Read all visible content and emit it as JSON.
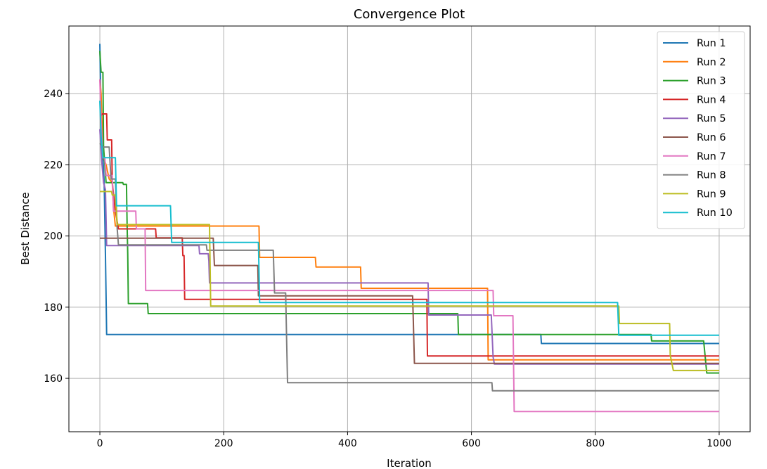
{
  "chart_data": {
    "type": "line",
    "title": "Convergence Plot",
    "xlabel": "Iteration",
    "ylabel": "Best Distance",
    "xlim": [
      -50,
      1050
    ],
    "ylim": [
      145,
      259
    ],
    "xticks": [
      0,
      200,
      400,
      600,
      800,
      1000
    ],
    "yticks": [
      160,
      180,
      200,
      220,
      240
    ],
    "grid": true,
    "legend_position": "top-right",
    "series": [
      {
        "name": "Run 1",
        "color": "#1f77b4",
        "points": [
          [
            0,
            254
          ],
          [
            2,
            234
          ],
          [
            5,
            222
          ],
          [
            7,
            215
          ],
          [
            9,
            194.5
          ],
          [
            11,
            172.3
          ],
          [
            712,
            172.3
          ],
          [
            713,
            169.8
          ],
          [
            1000,
            169.8
          ]
        ]
      },
      {
        "name": "Run 2",
        "color": "#ff7f0e",
        "points": [
          [
            0,
            244
          ],
          [
            2,
            240
          ],
          [
            4,
            228
          ],
          [
            6,
            222
          ],
          [
            10,
            220
          ],
          [
            15,
            216
          ],
          [
            20,
            215
          ],
          [
            22,
            208
          ],
          [
            25,
            202.8
          ],
          [
            257,
            202.8
          ],
          [
            258,
            194
          ],
          [
            348,
            194
          ],
          [
            349,
            191.3
          ],
          [
            421,
            191.3
          ],
          [
            422,
            185.3
          ],
          [
            626,
            185.3
          ],
          [
            627,
            165.2
          ],
          [
            1000,
            165.2
          ]
        ]
      },
      {
        "name": "Run 3",
        "color": "#2ca02c",
        "points": [
          [
            0,
            252
          ],
          [
            2,
            246
          ],
          [
            5,
            246
          ],
          [
            6,
            225
          ],
          [
            10,
            215
          ],
          [
            37,
            215
          ],
          [
            38,
            214.5
          ],
          [
            43,
            214.5
          ],
          [
            44,
            203
          ],
          [
            45,
            195
          ],
          [
            46,
            181
          ],
          [
            77,
            181
          ],
          [
            78,
            178.2
          ],
          [
            578,
            178.2
          ],
          [
            579,
            172.3
          ],
          [
            890,
            172.3
          ],
          [
            891,
            170.5
          ],
          [
            975,
            170.5
          ],
          [
            978,
            165
          ],
          [
            980,
            161.5
          ],
          [
            1000,
            161.5
          ]
        ]
      },
      {
        "name": "Run 4",
        "color": "#d62728",
        "points": [
          [
            0,
            234
          ],
          [
            3,
            234
          ],
          [
            4,
            234.3
          ],
          [
            11,
            234.3
          ],
          [
            12,
            227
          ],
          [
            19,
            227
          ],
          [
            20,
            215
          ],
          [
            25,
            207
          ],
          [
            30,
            202
          ],
          [
            90,
            202
          ],
          [
            91,
            199.5
          ],
          [
            133,
            199.5
          ],
          [
            134,
            194.5
          ],
          [
            136,
            194.5
          ],
          [
            137,
            182.2
          ],
          [
            528,
            182.2
          ],
          [
            529,
            166.3
          ],
          [
            1000,
            166.3
          ]
        ]
      },
      {
        "name": "Run 5",
        "color": "#9467bd",
        "points": [
          [
            0,
            230
          ],
          [
            3,
            221
          ],
          [
            6,
            215
          ],
          [
            9,
            213
          ],
          [
            11,
            197.3
          ],
          [
            160,
            197.3
          ],
          [
            161,
            195
          ],
          [
            175,
            195
          ],
          [
            176,
            193
          ],
          [
            177,
            186.8
          ],
          [
            530,
            186.8
          ],
          [
            531,
            177.8
          ],
          [
            632,
            177.8
          ],
          [
            635,
            166
          ],
          [
            637,
            164
          ],
          [
            1000,
            164
          ]
        ]
      },
      {
        "name": "Run 6",
        "color": "#8c564b",
        "points": [
          [
            0,
            199.4
          ],
          [
            183,
            199.4
          ],
          [
            185,
            191.7
          ],
          [
            255,
            191.7
          ],
          [
            256,
            183.2
          ],
          [
            505,
            183.2
          ],
          [
            506,
            177
          ],
          [
            508,
            164.2
          ],
          [
            1000,
            164.2
          ]
        ]
      },
      {
        "name": "Run 7",
        "color": "#e377c2",
        "points": [
          [
            0,
            244
          ],
          [
            2,
            232
          ],
          [
            5,
            222
          ],
          [
            8,
            222
          ],
          [
            10,
            217
          ],
          [
            20,
            217
          ],
          [
            22,
            207
          ],
          [
            58,
            207
          ],
          [
            59,
            202
          ],
          [
            73,
            202
          ],
          [
            74,
            184.7
          ],
          [
            635,
            184.7
          ],
          [
            636,
            177.6
          ],
          [
            667,
            177.6
          ],
          [
            669,
            150.7
          ],
          [
            1000,
            150.7
          ]
        ]
      },
      {
        "name": "Run 8",
        "color": "#7f7f7f",
        "points": [
          [
            0,
            226
          ],
          [
            5,
            225
          ],
          [
            15,
            225
          ],
          [
            18,
            216
          ],
          [
            25,
            216
          ],
          [
            28,
            202
          ],
          [
            30,
            197.5
          ],
          [
            172,
            197.5
          ],
          [
            173,
            196
          ],
          [
            280,
            196
          ],
          [
            282,
            184
          ],
          [
            300,
            184
          ],
          [
            303,
            158.8
          ],
          [
            633,
            158.8
          ],
          [
            634,
            156.5
          ],
          [
            1000,
            156.5
          ]
        ]
      },
      {
        "name": "Run 9",
        "color": "#bcbd22",
        "points": [
          [
            0,
            212.5
          ],
          [
            19,
            212.5
          ],
          [
            20,
            211.5
          ],
          [
            25,
            211.5
          ],
          [
            28,
            203.2
          ],
          [
            177,
            203.2
          ],
          [
            179,
            180.3
          ],
          [
            838,
            180.3
          ],
          [
            839,
            175.4
          ],
          [
            920,
            175.4
          ],
          [
            921,
            166.5
          ],
          [
            926,
            162.2
          ],
          [
            1000,
            162.2
          ]
        ]
      },
      {
        "name": "Run 10",
        "color": "#17becf",
        "points": [
          [
            0,
            238
          ],
          [
            2,
            228
          ],
          [
            5,
            222
          ],
          [
            25,
            222
          ],
          [
            27,
            208.5
          ],
          [
            114,
            208.5
          ],
          [
            116,
            198.2
          ],
          [
            256,
            198.2
          ],
          [
            258,
            181.3
          ],
          [
            836,
            181.3
          ],
          [
            838,
            172.1
          ],
          [
            1000,
            172.1
          ]
        ]
      }
    ]
  }
}
